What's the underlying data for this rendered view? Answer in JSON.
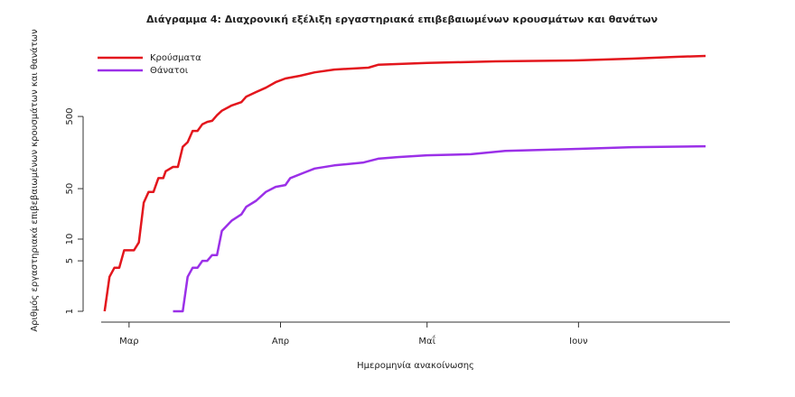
{
  "chart_data": {
    "type": "line",
    "title": "Διάγραμμα 4: Διαχρονική εξέλιξη εργαστηριακά επιβεβαιωμένων κρουσμάτων και θανάτων",
    "xlabel": "Ημερομηνία ανακοίνωσης",
    "ylabel": "Αριθμός εργαστηριακά επιβεβαιωμένων κρουσμάτων και θανάτων",
    "log_y": true,
    "xlim": [
      -7,
      123
    ],
    "ylim": [
      0.75,
      5620
    ],
    "xticks": [
      {
        "value": 0,
        "label": "Μαρ"
      },
      {
        "value": 31,
        "label": "Απρ"
      },
      {
        "value": 61,
        "label": "Μαΐ"
      },
      {
        "value": 92,
        "label": "Ιουν"
      }
    ],
    "yticks": [
      1,
      5,
      10,
      50,
      500
    ],
    "legend": "top-left",
    "series": [
      {
        "name": "Κρούσματα",
        "color": "#e3161d",
        "x": [
          -5,
          -4,
          -3,
          -2,
          -1,
          1,
          2,
          3,
          4,
          5,
          6,
          7,
          7.5,
          9,
          10,
          11,
          12,
          13,
          14,
          15,
          16,
          17,
          18,
          19,
          21,
          23,
          24,
          26,
          28,
          30,
          32,
          35,
          38,
          42,
          49,
          51,
          61,
          75,
          92,
          103,
          112,
          118
        ],
        "values": [
          1,
          3,
          4,
          4,
          7,
          7,
          9,
          32,
          45,
          45,
          70,
          70,
          87,
          100,
          100,
          190,
          220,
          315,
          315,
          390,
          420,
          435,
          520,
          600,
          710,
          790,
          940,
          1090,
          1250,
          1490,
          1680,
          1830,
          2040,
          2230,
          2370,
          2600,
          2750,
          2900,
          2990,
          3160,
          3350,
          3450
        ]
      },
      {
        "name": "Θάνατοι",
        "color": "#9b30e8",
        "x": [
          9,
          11,
          12,
          13,
          14,
          15,
          16,
          17,
          18,
          19,
          21,
          23,
          24,
          26,
          28,
          30,
          32,
          33,
          36,
          38,
          42,
          48,
          51,
          55,
          61,
          70,
          77,
          92,
          103,
          118
        ],
        "values": [
          1,
          1,
          3,
          4,
          4,
          5,
          5,
          6,
          6,
          13,
          18,
          22,
          28,
          34,
          45,
          53,
          56,
          70,
          84,
          95,
          105,
          115,
          130,
          137,
          145,
          150,
          167,
          178,
          188,
          193
        ]
      }
    ]
  }
}
